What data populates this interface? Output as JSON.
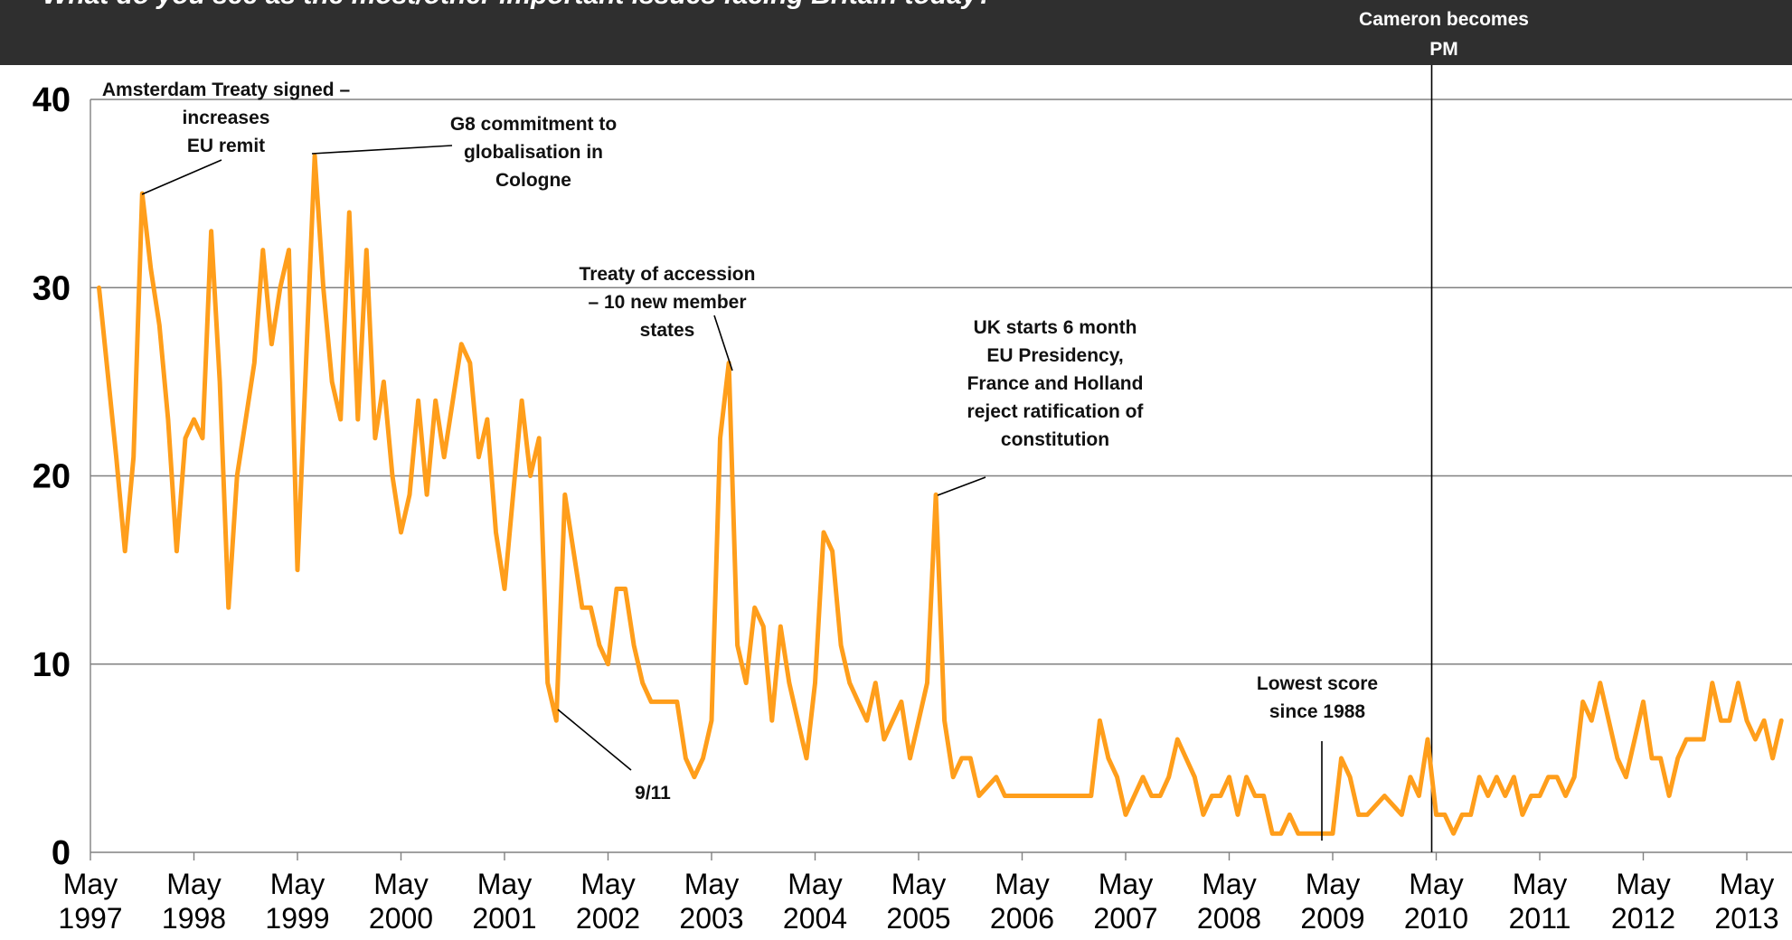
{
  "header": {
    "question": "What do you see as the most/other important issues facing Britain today?",
    "marker_label_line1": "Cameron becomes",
    "marker_label_line2": "PM"
  },
  "colors": {
    "line": "#FF9E1B",
    "header_bg": "#2F2F2F",
    "grid": "#808080"
  },
  "chart_data": {
    "type": "line",
    "title": "",
    "xlabel": "",
    "ylabel": "",
    "ylim": [
      0,
      40
    ],
    "yticks": [
      "0",
      "10",
      "20",
      "30",
      "40"
    ],
    "xticks": [
      {
        "label1": "May",
        "label2": "1997",
        "date": "1997-05"
      },
      {
        "label1": "May",
        "label2": "1998",
        "date": "1998-05"
      },
      {
        "label1": "May",
        "label2": "1999",
        "date": "1999-05"
      },
      {
        "label1": "May",
        "label2": "2000",
        "date": "2000-05"
      },
      {
        "label1": "May",
        "label2": "2001",
        "date": "2001-05"
      },
      {
        "label1": "May",
        "label2": "2002",
        "date": "2002-05"
      },
      {
        "label1": "May",
        "label2": "2003",
        "date": "2003-05"
      },
      {
        "label1": "May",
        "label2": "2004",
        "date": "2004-05"
      },
      {
        "label1": "May",
        "label2": "2005",
        "date": "2005-05"
      },
      {
        "label1": "May",
        "label2": "2006",
        "date": "2006-05"
      },
      {
        "label1": "May",
        "label2": "2007",
        "date": "2007-05"
      },
      {
        "label1": "May",
        "label2": "2008",
        "date": "2008-05"
      },
      {
        "label1": "May",
        "label2": "2009",
        "date": "2009-05"
      },
      {
        "label1": "May",
        "label2": "2010",
        "date": "2010-05"
      },
      {
        "label1": "May",
        "label2": "2011",
        "date": "2011-05"
      },
      {
        "label1": "May",
        "label2": "2012",
        "date": "2012-05"
      },
      {
        "label1": "May",
        "label2": "2013",
        "date": "2013-05"
      }
    ],
    "x_range": [
      "1997-05",
      "2013-09"
    ],
    "grid": true,
    "series": [
      {
        "name": "",
        "points": [
          [
            "1997-06",
            30
          ],
          [
            "1997-08",
            21
          ],
          [
            "1997-09",
            16
          ],
          [
            "1997-10",
            21
          ],
          [
            "1997-11",
            35
          ],
          [
            "1997-12",
            31
          ],
          [
            "1998-01",
            28
          ],
          [
            "1998-02",
            23
          ],
          [
            "1998-03",
            16
          ],
          [
            "1998-04",
            22
          ],
          [
            "1998-05",
            23
          ],
          [
            "1998-06",
            22
          ],
          [
            "1998-07",
            33
          ],
          [
            "1998-08",
            25
          ],
          [
            "1998-09",
            13
          ],
          [
            "1998-10",
            20
          ],
          [
            "1998-11",
            23
          ],
          [
            "1998-12",
            26
          ],
          [
            "1999-01",
            32
          ],
          [
            "1999-02",
            27
          ],
          [
            "1999-03",
            30
          ],
          [
            "1999-04",
            32
          ],
          [
            "1999-05",
            15
          ],
          [
            "1999-06",
            26
          ],
          [
            "1999-07",
            37
          ],
          [
            "1999-08",
            30
          ],
          [
            "1999-09",
            25
          ],
          [
            "1999-10",
            23
          ],
          [
            "1999-11",
            34
          ],
          [
            "1999-12",
            23
          ],
          [
            "2000-01",
            32
          ],
          [
            "2000-02",
            22
          ],
          [
            "2000-03",
            25
          ],
          [
            "2000-04",
            20
          ],
          [
            "2000-05",
            17
          ],
          [
            "2000-06",
            19
          ],
          [
            "2000-07",
            24
          ],
          [
            "2000-08",
            19
          ],
          [
            "2000-09",
            24
          ],
          [
            "2000-10",
            21
          ],
          [
            "2000-11",
            24
          ],
          [
            "2000-12",
            27
          ],
          [
            "2001-01",
            26
          ],
          [
            "2001-02",
            21
          ],
          [
            "2001-03",
            23
          ],
          [
            "2001-04",
            17
          ],
          [
            "2001-05",
            14
          ],
          [
            "2001-06",
            19
          ],
          [
            "2001-07",
            24
          ],
          [
            "2001-08",
            20
          ],
          [
            "2001-09",
            22
          ],
          [
            "2001-10",
            9
          ],
          [
            "2001-11",
            7
          ],
          [
            "2001-12",
            19
          ],
          [
            "2002-01",
            16
          ],
          [
            "2002-02",
            13
          ],
          [
            "2002-03",
            13
          ],
          [
            "2002-04",
            11
          ],
          [
            "2002-05",
            10
          ],
          [
            "2002-06",
            14
          ],
          [
            "2002-07",
            14
          ],
          [
            "2002-08",
            11
          ],
          [
            "2002-09",
            9
          ],
          [
            "2002-10",
            8
          ],
          [
            "2002-11",
            8
          ],
          [
            "2002-12",
            8
          ],
          [
            "2003-01",
            8
          ],
          [
            "2003-02",
            5
          ],
          [
            "2003-03",
            4
          ],
          [
            "2003-04",
            5
          ],
          [
            "2003-05",
            7
          ],
          [
            "2003-06",
            22
          ],
          [
            "2003-07",
            26
          ],
          [
            "2003-08",
            11
          ],
          [
            "2003-09",
            9
          ],
          [
            "2003-10",
            13
          ],
          [
            "2003-11",
            12
          ],
          [
            "2003-12",
            7
          ],
          [
            "2004-01",
            12
          ],
          [
            "2004-02",
            9
          ],
          [
            "2004-03",
            7
          ],
          [
            "2004-04",
            5
          ],
          [
            "2004-05",
            9
          ],
          [
            "2004-06",
            17
          ],
          [
            "2004-07",
            16
          ],
          [
            "2004-08",
            11
          ],
          [
            "2004-09",
            9
          ],
          [
            "2004-10",
            8
          ],
          [
            "2004-11",
            7
          ],
          [
            "2004-12",
            9
          ],
          [
            "2005-01",
            6
          ],
          [
            "2005-03",
            8
          ],
          [
            "2005-04",
            5
          ],
          [
            "2005-06",
            9
          ],
          [
            "2005-07",
            19
          ],
          [
            "2005-08",
            7
          ],
          [
            "2005-09",
            4
          ],
          [
            "2005-10",
            5
          ],
          [
            "2005-11",
            5
          ],
          [
            "2005-12",
            3
          ],
          [
            "2006-02",
            4
          ],
          [
            "2006-03",
            3
          ],
          [
            "2006-05",
            3
          ],
          [
            "2006-07",
            3
          ],
          [
            "2006-09",
            3
          ],
          [
            "2006-11",
            3
          ],
          [
            "2007-01",
            3
          ],
          [
            "2007-02",
            7
          ],
          [
            "2007-03",
            5
          ],
          [
            "2007-04",
            4
          ],
          [
            "2007-05",
            2
          ],
          [
            "2007-07",
            4
          ],
          [
            "2007-08",
            3
          ],
          [
            "2007-09",
            3
          ],
          [
            "2007-10",
            4
          ],
          [
            "2007-11",
            6
          ],
          [
            "2007-12",
            5
          ],
          [
            "2008-01",
            4
          ],
          [
            "2008-02",
            2
          ],
          [
            "2008-03",
            3
          ],
          [
            "2008-04",
            3
          ],
          [
            "2008-05",
            4
          ],
          [
            "2008-06",
            2
          ],
          [
            "2008-07",
            4
          ],
          [
            "2008-08",
            3
          ],
          [
            "2008-09",
            3
          ],
          [
            "2008-10",
            1
          ],
          [
            "2008-11",
            1
          ],
          [
            "2008-12",
            2
          ],
          [
            "2009-01",
            1
          ],
          [
            "2009-02",
            1
          ],
          [
            "2009-03",
            1
          ],
          [
            "2009-04",
            1
          ],
          [
            "2009-05",
            1
          ],
          [
            "2009-06",
            5
          ],
          [
            "2009-07",
            4
          ],
          [
            "2009-08",
            2
          ],
          [
            "2009-09",
            2
          ],
          [
            "2009-11",
            3
          ],
          [
            "2010-01",
            2
          ],
          [
            "2010-02",
            4
          ],
          [
            "2010-03",
            3
          ],
          [
            "2010-04",
            6
          ],
          [
            "2010-05",
            2
          ],
          [
            "2010-06",
            2
          ],
          [
            "2010-07",
            1
          ],
          [
            "2010-08",
            2
          ],
          [
            "2010-09",
            2
          ],
          [
            "2010-10",
            4
          ],
          [
            "2010-11",
            3
          ],
          [
            "2010-12",
            4
          ],
          [
            "2011-01",
            3
          ],
          [
            "2011-02",
            4
          ],
          [
            "2011-03",
            2
          ],
          [
            "2011-04",
            3
          ],
          [
            "2011-05",
            3
          ],
          [
            "2011-06",
            4
          ],
          [
            "2011-07",
            4
          ],
          [
            "2011-08",
            3
          ],
          [
            "2011-09",
            4
          ],
          [
            "2011-10",
            8
          ],
          [
            "2011-11",
            7
          ],
          [
            "2011-12",
            9
          ],
          [
            "2012-01",
            7
          ],
          [
            "2012-02",
            5
          ],
          [
            "2012-03",
            4
          ],
          [
            "2012-04",
            6
          ],
          [
            "2012-05",
            8
          ],
          [
            "2012-06",
            5
          ],
          [
            "2012-07",
            5
          ],
          [
            "2012-08",
            3
          ],
          [
            "2012-09",
            5
          ],
          [
            "2012-10",
            6
          ],
          [
            "2012-11",
            6
          ],
          [
            "2012-12",
            6
          ],
          [
            "2013-01",
            9
          ],
          [
            "2013-02",
            7
          ],
          [
            "2013-03",
            7
          ],
          [
            "2013-04",
            9
          ],
          [
            "2013-05",
            7
          ],
          [
            "2013-06",
            6
          ],
          [
            "2013-07",
            7
          ],
          [
            "2013-08",
            5
          ],
          [
            "2013-09",
            7
          ]
        ]
      }
    ],
    "annotations": [
      {
        "id": "amsterdam",
        "lines": [
          "Amsterdam Treaty signed –",
          "increases",
          "EU remit"
        ],
        "point_date": "1997-11",
        "point_value": 35
      },
      {
        "id": "g8",
        "lines": [
          "G8 commitment to",
          "globalisation in",
          "Cologne"
        ],
        "point_date": "1999-07",
        "point_value": 37
      },
      {
        "id": "accession",
        "lines": [
          "Treaty of accession",
          "– 10 new member",
          "states"
        ],
        "point_date": "2003-07",
        "point_value": 26
      },
      {
        "id": "uk-presidency",
        "lines": [
          "UK starts 6 month",
          "EU Presidency,",
          "France and Holland",
          "reject ratification of",
          "constitution"
        ],
        "point_date": "2005-07",
        "point_value": 19
      },
      {
        "id": "nine-eleven",
        "lines": [
          "9/11"
        ],
        "point_date": "2001-11",
        "point_value": 7
      },
      {
        "id": "lowest",
        "lines": [
          "Lowest score",
          "since 1988"
        ],
        "point_date": "2009-05",
        "point_value": 1
      }
    ]
  }
}
